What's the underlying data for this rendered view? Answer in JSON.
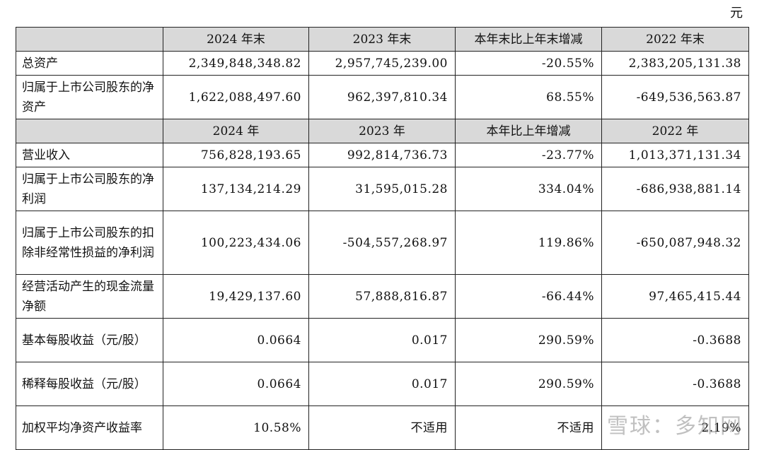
{
  "unit": "元",
  "header1": [
    "",
    "2024 年末",
    "2023 年末",
    "本年末比上年末增减",
    "2022 年末"
  ],
  "header2": [
    "",
    "2024 年",
    "2023 年",
    "本年比上年增减",
    "2022 年"
  ],
  "rows1": [
    {
      "label": "总资产",
      "v": [
        "2,349,848,348.82",
        "2,957,745,239.00",
        "-20.55%",
        "2,383,205,131.38"
      ]
    },
    {
      "label": "归属于上市公司股东的净资产",
      "v": [
        "1,622,088,497.60",
        "962,397,810.34",
        "68.55%",
        "-649,536,563.87"
      ]
    }
  ],
  "rows2": [
    {
      "label": "营业收入",
      "v": [
        "756,828,193.65",
        "992,814,736.73",
        "-23.77%",
        "1,013,371,131.34"
      ]
    },
    {
      "label": "归属于上市公司股东的净利润",
      "v": [
        "137,134,214.29",
        "31,595,015.28",
        "334.04%",
        "-686,938,881.14"
      ]
    },
    {
      "label": "归属于上市公司股东的扣除非经常性损益的净利润",
      "v": [
        "100,223,434.06",
        "-504,557,268.97",
        "119.86%",
        "-650,087,948.32"
      ]
    },
    {
      "label": "经营活动产生的现金流量净额",
      "v": [
        "19,429,137.60",
        "57,888,816.87",
        "-66.44%",
        "97,465,415.44"
      ]
    },
    {
      "label": "基本每股收益（元/股）",
      "v": [
        "0.0664",
        "0.017",
        "290.59%",
        "-0.3688"
      ]
    },
    {
      "label": "稀释每股收益（元/股）",
      "v": [
        "0.0664",
        "0.017",
        "290.59%",
        "-0.3688"
      ]
    },
    {
      "label": "加权平均净资产收益率",
      "v": [
        "10.58%",
        "不适用",
        "不适用",
        "2.19%"
      ]
    }
  ],
  "watermark": "雪球：多知网"
}
